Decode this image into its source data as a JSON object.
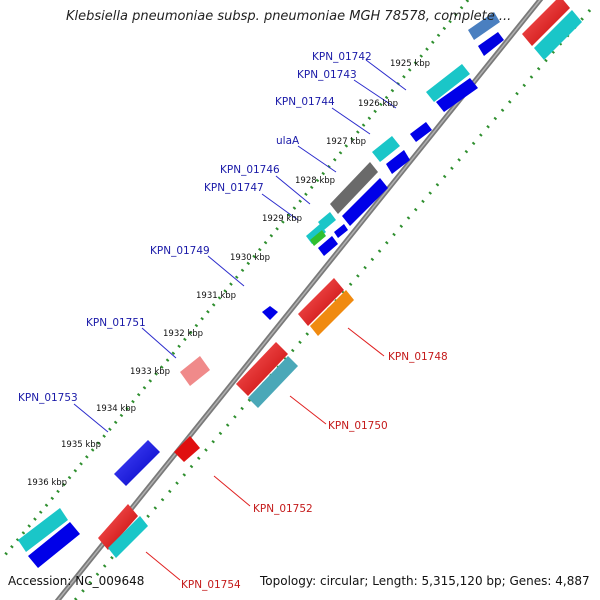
{
  "title": "Klebsiella pneumoniae subsp. pneumoniae MGH 78578, complete ...",
  "footer": {
    "accession": "Accession: NC_009648",
    "topology": "Topology: circular; Length: 5,315,120 bp; Genes: 4,887"
  },
  "colors": {
    "backbone": "#7a7a7a",
    "tick_dots": "#2f8f2f",
    "label_forward": "#1a1aa8",
    "label_reverse": "#c41a1a",
    "leader_forward": "#2b2bcc",
    "leader_reverse": "#e02020"
  },
  "scale_labels": [
    "1925 kbp",
    "1926 kbp",
    "1927 kbp",
    "1928 kbp",
    "1929 kbp",
    "1930 kbp",
    "1931 kbp",
    "1932 kbp",
    "1933 kbp",
    "1934 kbp",
    "1935 kbp",
    "1936 kbp"
  ],
  "gene_labels_forward": [
    "KPN_01742",
    "KPN_01743",
    "KPN_01744",
    "ulaA",
    "KPN_01746",
    "KPN_01747",
    "KPN_01749",
    "KPN_01751",
    "KPN_01753"
  ],
  "gene_labels_reverse": [
    "KPN_01748",
    "KPN_01750",
    "KPN_01752",
    "KPN_01754"
  ]
}
